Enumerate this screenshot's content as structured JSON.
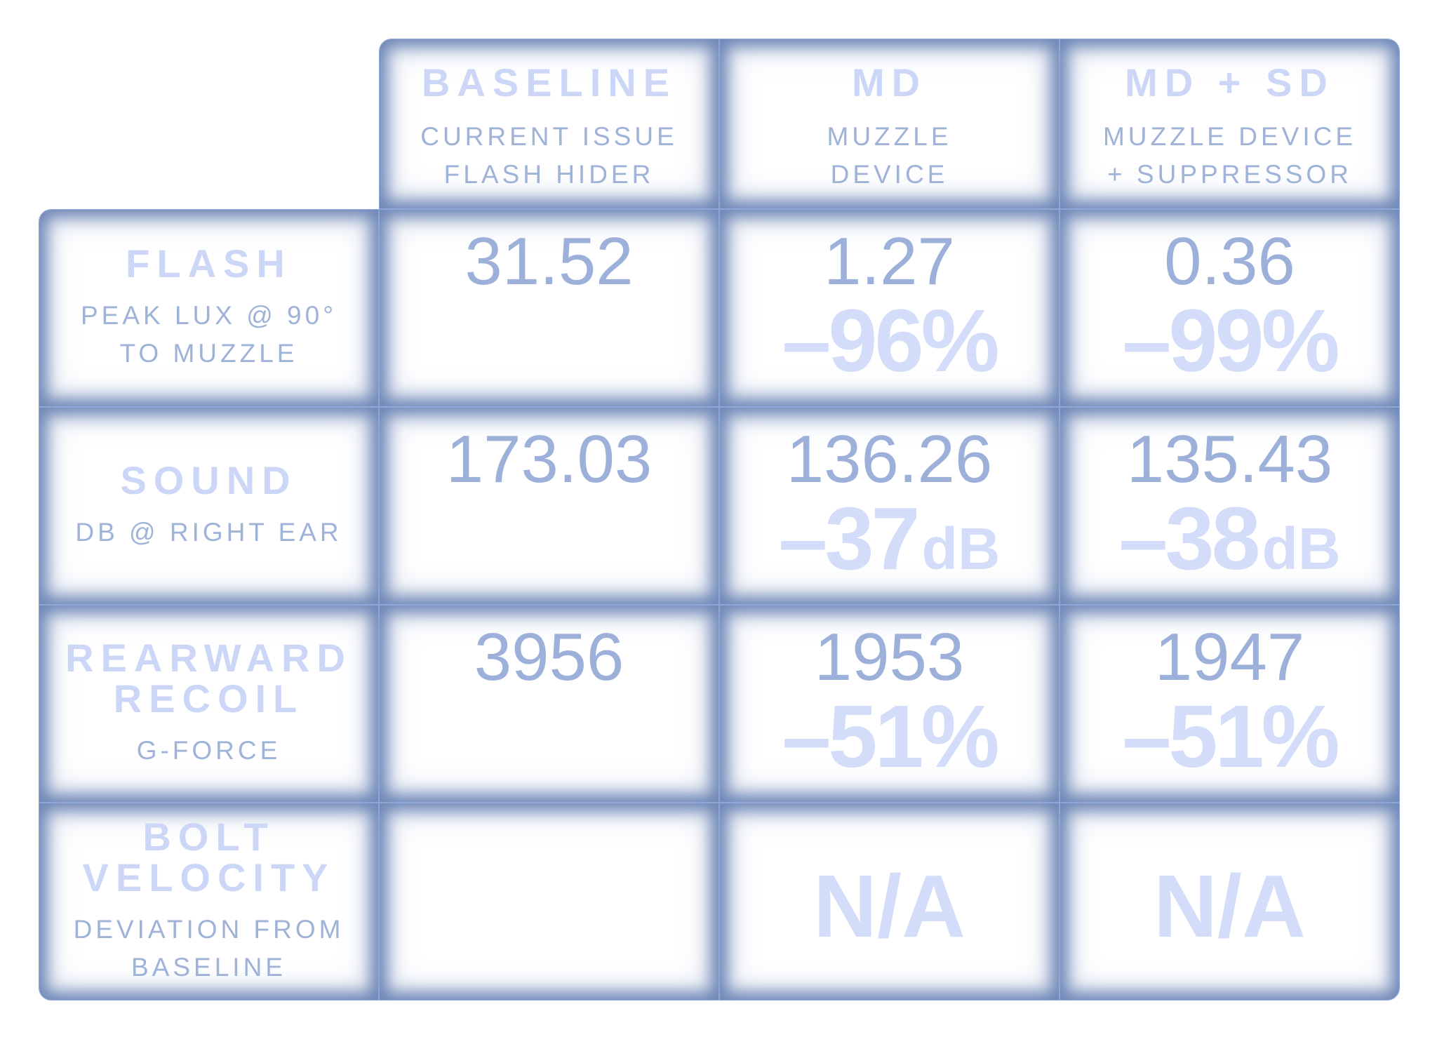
{
  "columns": [
    {
      "title": "BASELINE",
      "sub1": "CURRENT ISSUE",
      "sub2": "FLASH HIDER"
    },
    {
      "title": "MD",
      "sub1": "MUZZLE",
      "sub2": "DEVICE"
    },
    {
      "title": "MD + SD",
      "sub1": "MUZZLE DEVICE",
      "sub2": "+ SUPPRESSOR"
    }
  ],
  "rows": [
    {
      "title1": "FLASH",
      "title2": "",
      "sub1": "PEAK LUX @ 90°",
      "sub2": "TO MUZZLE",
      "baseline": "31.52",
      "md": {
        "value": "1.27",
        "delta": "–96%",
        "unit": ""
      },
      "mdsd": {
        "value": "0.36",
        "delta": "–99%",
        "unit": ""
      }
    },
    {
      "title1": "SOUND",
      "title2": "",
      "sub1": "DB @ RIGHT EAR",
      "sub2": "",
      "baseline": "173.03",
      "md": {
        "value": "136.26",
        "delta": "–37",
        "unit": "dB"
      },
      "mdsd": {
        "value": "135.43",
        "delta": "–38",
        "unit": "dB"
      }
    },
    {
      "title1": "REARWARD",
      "title2": "RECOIL",
      "sub1": "G-FORCE",
      "sub2": "",
      "baseline": "3956",
      "md": {
        "value": "1953",
        "delta": "–51%",
        "unit": ""
      },
      "mdsd": {
        "value": "1947",
        "delta": "–51%",
        "unit": ""
      }
    },
    {
      "title1": "BOLT",
      "title2": "VELOCITY",
      "sub1": "DEVIATION FROM",
      "sub2": "BASELINE",
      "baseline": "",
      "md": {
        "na": "N/A"
      },
      "mdsd": {
        "na": "N/A"
      }
    }
  ]
}
